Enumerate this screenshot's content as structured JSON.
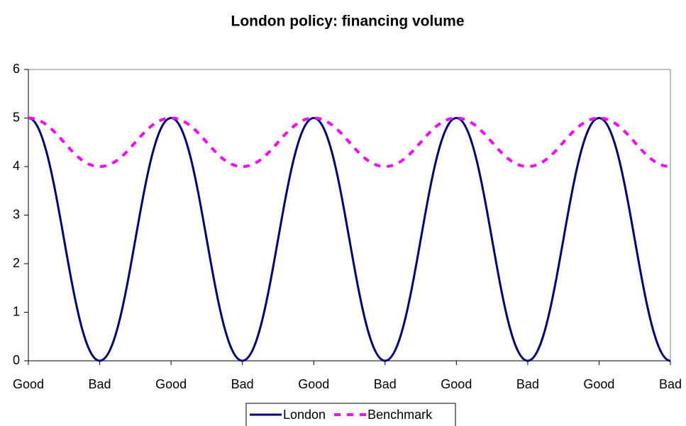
{
  "chart_data": {
    "type": "line",
    "title": "London policy: financing volume",
    "categories": [
      "Good",
      "Bad",
      "Good",
      "Bad",
      "Good",
      "Bad",
      "Good",
      "Bad",
      "Good",
      "Bad"
    ],
    "series": [
      {
        "name": "London",
        "color": "#000080",
        "dash": "solid",
        "values": [
          5,
          0,
          5,
          0,
          5,
          0,
          5,
          0,
          5,
          0
        ]
      },
      {
        "name": "Benchmark",
        "color": "#ff00ff",
        "dash": "dashed",
        "values": [
          5,
          4,
          5,
          4,
          5,
          4,
          5,
          4,
          5,
          4
        ]
      }
    ],
    "ylim": [
      0,
      6
    ],
    "yticks": [
      0,
      1,
      2,
      3,
      4,
      5,
      6
    ],
    "smooth": true,
    "legend": "bottom"
  }
}
